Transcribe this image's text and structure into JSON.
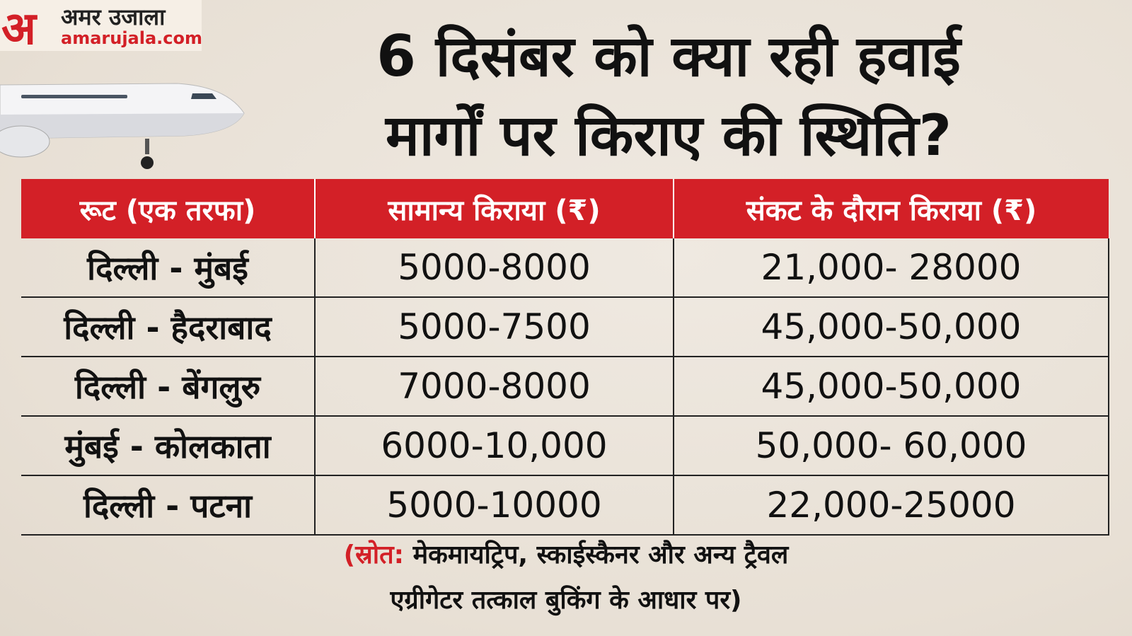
{
  "logo": {
    "mark": "अ",
    "name": "अमर उजाला",
    "site": "amarujala.com"
  },
  "title": {
    "line1": "6 दिसंबर को क्या रही हवाई",
    "line2": "मार्गों पर किराए की स्थिति?"
  },
  "table": {
    "header": [
      "रूट (एक तरफा)",
      "सामान्य किराया (₹)",
      "संकट के दौरान किराया (₹)"
    ],
    "rows": [
      [
        "दिल्ली - मुंबई",
        "5000-8000",
        "21,000- 28000"
      ],
      [
        "दिल्ली - हैदराबाद",
        "5000-7500",
        "45,000-50,000"
      ],
      [
        "दिल्ली - बेंगलुरु",
        "7000-8000",
        "45,000-50,000"
      ],
      [
        "मुंबई - कोलकाता",
        "6000-10,000",
        "50,000- 60,000"
      ],
      [
        "दिल्ली - पटना",
        "5000-10000",
        "22,000-25000"
      ]
    ]
  },
  "source": {
    "prefix": "(स्रोत:",
    "line1": "मेकमायट्रिप, स्काईस्कैनर और अन्य ट्रैवल",
    "line2": "एग्रीगेटर तत्काल बुकिंग के आधार पर)"
  }
}
